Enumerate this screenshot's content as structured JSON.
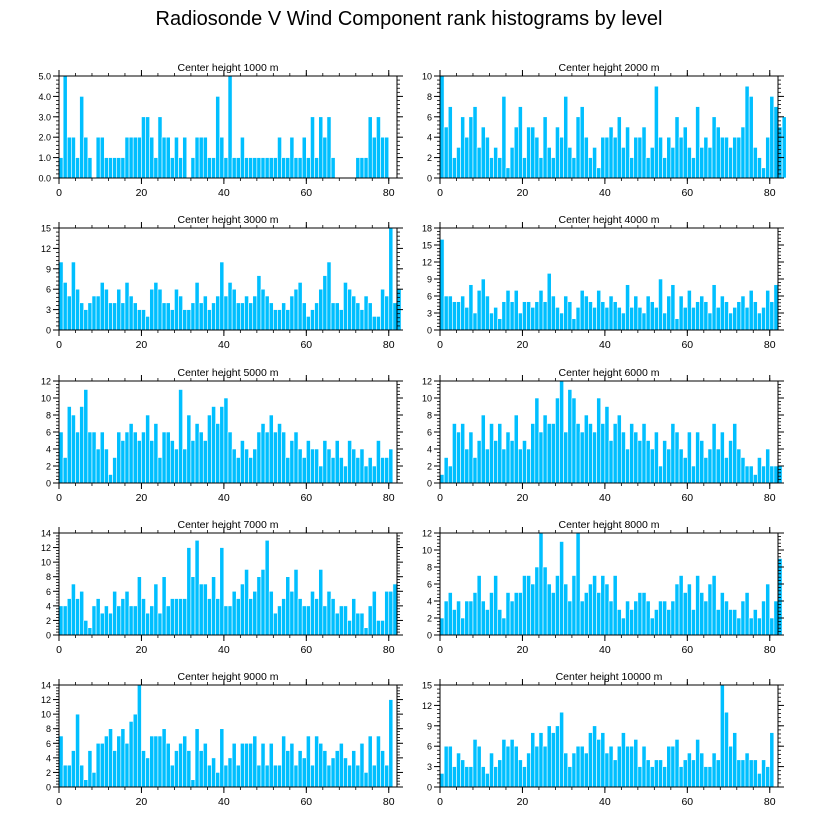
{
  "title": "Radiosonde V Wind Component rank histograms by level",
  "colors": {
    "bar": "#00bfff",
    "bar_edge": "#ffffff",
    "axis": "#000000"
  },
  "chart_data": [
    {
      "type": "bar",
      "title": "Center height 1000 m",
      "xlim": [
        0,
        82
      ],
      "ylim": [
        0,
        5
      ],
      "xticks": [
        0,
        20,
        40,
        60,
        80
      ],
      "yticks": [
        0,
        1,
        2,
        3,
        4,
        5
      ],
      "ytick_labels": [
        "0.0",
        "1.0",
        "2.0",
        "3.0",
        "4.0",
        "5.0"
      ],
      "values": [
        1,
        5,
        2,
        2,
        1,
        4,
        2,
        1,
        0,
        2,
        2,
        1,
        1,
        1,
        1,
        1,
        2,
        2,
        2,
        2,
        3,
        3,
        2,
        1,
        3,
        2,
        2,
        1,
        2,
        1,
        2,
        0,
        1,
        2,
        2,
        2,
        1,
        1,
        4,
        2,
        1,
        5,
        1,
        1,
        2,
        1,
        1,
        1,
        1,
        1,
        1,
        1,
        1,
        2,
        1,
        1,
        2,
        1,
        1,
        2,
        1,
        3,
        1,
        3,
        2,
        3,
        1,
        0,
        0,
        0,
        0,
        0,
        1,
        1,
        1,
        3,
        2,
        3,
        2,
        2,
        0
      ]
    },
    {
      "type": "bar",
      "title": "Center height 2000 m",
      "xlim": [
        0,
        82
      ],
      "ylim": [
        0,
        10
      ],
      "xticks": [
        0,
        20,
        40,
        60,
        80
      ],
      "yticks": [
        0,
        2,
        4,
        6,
        8,
        10
      ],
      "ytick_labels": [
        "0",
        "2",
        "4",
        "6",
        "8",
        "10"
      ],
      "values": [
        10,
        5,
        7,
        2,
        3,
        6,
        4,
        6,
        7,
        3,
        5,
        4,
        2,
        3,
        2,
        8,
        1,
        3,
        5,
        7,
        2,
        5,
        5,
        4,
        2,
        6,
        3,
        2,
        5,
        4,
        8,
        3,
        2,
        6,
        7,
        4,
        2,
        3,
        1,
        4,
        4,
        5,
        4,
        6,
        3,
        5,
        2,
        4,
        4,
        5,
        2,
        3,
        9,
        4,
        2,
        4,
        3,
        6,
        4,
        5,
        3,
        2,
        7,
        3,
        4,
        3,
        6,
        5,
        4,
        4,
        3,
        4,
        4,
        5,
        9,
        8,
        3,
        2,
        1,
        4,
        8,
        7,
        5,
        6
      ]
    },
    {
      "type": "bar",
      "title": "Center height 3000 m",
      "xlim": [
        0,
        82
      ],
      "ylim": [
        0,
        15
      ],
      "xticks": [
        0,
        20,
        40,
        60,
        80
      ],
      "yticks": [
        0,
        3,
        6,
        9,
        12,
        15
      ],
      "ytick_labels": [
        "0",
        "3",
        "6",
        "9",
        "12",
        "15"
      ],
      "values": [
        10,
        7,
        5,
        10,
        6,
        4,
        3,
        4,
        5,
        5,
        7,
        6,
        4,
        4,
        6,
        4,
        7,
        5,
        4,
        3,
        3,
        2,
        6,
        7,
        6,
        4,
        4,
        3,
        6,
        5,
        3,
        3,
        4,
        7,
        4,
        5,
        3,
        4,
        5,
        10,
        5,
        7,
        6,
        4,
        4,
        5,
        4,
        5,
        8,
        6,
        5,
        4,
        3,
        3,
        4,
        3,
        5,
        6,
        7,
        4,
        2,
        3,
        4,
        6,
        8,
        10,
        4,
        4,
        3,
        7,
        6,
        5,
        4,
        3,
        5,
        4,
        2,
        2,
        6,
        5,
        15,
        4,
        6
      ]
    },
    {
      "type": "bar",
      "title": "Center height 4000 m",
      "xlim": [
        0,
        82
      ],
      "ylim": [
        0,
        18
      ],
      "xticks": [
        0,
        20,
        40,
        60,
        80
      ],
      "yticks": [
        0,
        3,
        6,
        9,
        12,
        15,
        18
      ],
      "ytick_labels": [
        "0",
        "3",
        "6",
        "9",
        "12",
        "15",
        "18"
      ],
      "values": [
        16,
        6,
        6,
        5,
        5,
        6,
        4,
        8,
        3,
        7,
        9,
        6,
        3,
        4,
        2,
        5,
        7,
        5,
        7,
        3,
        5,
        5,
        4,
        5,
        7,
        5,
        10,
        6,
        4,
        3,
        6,
        5,
        2,
        4,
        7,
        6,
        5,
        4,
        7,
        5,
        4,
        6,
        5,
        4,
        3,
        8,
        4,
        6,
        4,
        3,
        6,
        5,
        4,
        9,
        3,
        6,
        8,
        2,
        6,
        4,
        7,
        4,
        5,
        6,
        5,
        3,
        8,
        4,
        6,
        5,
        3,
        4,
        5,
        6,
        4,
        7,
        5,
        3,
        4,
        7,
        5,
        8
      ]
    },
    {
      "type": "bar",
      "title": "Center height 5000 m",
      "xlim": [
        0,
        82
      ],
      "ylim": [
        0,
        12
      ],
      "xticks": [
        0,
        20,
        40,
        60,
        80
      ],
      "yticks": [
        0,
        2,
        4,
        6,
        8,
        10,
        12
      ],
      "ytick_labels": [
        "0",
        "2",
        "4",
        "6",
        "8",
        "10",
        "12"
      ],
      "values": [
        6,
        3,
        9,
        8,
        6,
        9,
        11,
        6,
        6,
        4,
        6,
        4,
        1,
        3,
        6,
        5,
        6,
        7,
        6,
        5,
        6,
        8,
        5,
        7,
        3,
        6,
        6,
        5,
        4,
        11,
        4,
        8,
        5,
        7,
        6,
        5,
        8,
        9,
        7,
        9,
        10,
        6,
        4,
        3,
        5,
        4,
        3,
        4,
        6,
        7,
        6,
        8,
        6,
        7,
        6,
        3,
        5,
        6,
        4,
        3,
        5,
        4,
        4,
        2,
        5,
        4,
        3,
        5,
        3,
        2,
        5,
        4,
        3,
        4,
        2,
        3,
        2,
        5,
        3,
        3,
        4
      ]
    },
    {
      "type": "bar",
      "title": "Center height 6000 m",
      "xlim": [
        0,
        82
      ],
      "ylim": [
        0,
        12
      ],
      "xticks": [
        0,
        20,
        40,
        60,
        80
      ],
      "yticks": [
        0,
        2,
        4,
        6,
        8,
        10,
        12
      ],
      "ytick_labels": [
        "0",
        "2",
        "4",
        "6",
        "8",
        "10",
        "12"
      ],
      "values": [
        1,
        3,
        2,
        7,
        6,
        7,
        4,
        6,
        3,
        5,
        8,
        4,
        7,
        5,
        7,
        4,
        6,
        5,
        8,
        4,
        5,
        4,
        7,
        10,
        6,
        8,
        7,
        7,
        10,
        12,
        6,
        11,
        10,
        7,
        6,
        8,
        7,
        6,
        10,
        7,
        9,
        5,
        7,
        8,
        6,
        4,
        7,
        6,
        5,
        7,
        5,
        4,
        6,
        2,
        5,
        4,
        7,
        6,
        4,
        3,
        6,
        2,
        6,
        5,
        3,
        4,
        7,
        4,
        6,
        3,
        5,
        7,
        4,
        3,
        2,
        2,
        1,
        3,
        2,
        4,
        2,
        2,
        2
      ]
    },
    {
      "type": "bar",
      "title": "Center height 7000 m",
      "xlim": [
        0,
        82
      ],
      "ylim": [
        0,
        14
      ],
      "xticks": [
        0,
        20,
        40,
        60,
        80
      ],
      "yticks": [
        0,
        2,
        4,
        6,
        8,
        10,
        12,
        14
      ],
      "ytick_labels": [
        "0",
        "2",
        "4",
        "6",
        "8",
        "10",
        "12",
        "14"
      ],
      "values": [
        4,
        4,
        5,
        7,
        5,
        6,
        2,
        1,
        4,
        5,
        3,
        4,
        3,
        6,
        4,
        5,
        6,
        4,
        4,
        8,
        5,
        3,
        4,
        7,
        3,
        8,
        4,
        5,
        5,
        5,
        5,
        12,
        8,
        13,
        7,
        7,
        5,
        8,
        5,
        12,
        4,
        4,
        6,
        5,
        7,
        9,
        5,
        6,
        8,
        9,
        13,
        6,
        3,
        4,
        5,
        8,
        6,
        9,
        5,
        4,
        4,
        6,
        5,
        9,
        4,
        6,
        5,
        3,
        4,
        4,
        2,
        5,
        3,
        3,
        1,
        4,
        6,
        2,
        2,
        6,
        6,
        7
      ]
    },
    {
      "type": "bar",
      "title": "Center height 8000 m",
      "xlim": [
        0,
        82
      ],
      "ylim": [
        0,
        12
      ],
      "xticks": [
        0,
        20,
        40,
        60,
        80
      ],
      "yticks": [
        0,
        2,
        4,
        6,
        8,
        10,
        12
      ],
      "ytick_labels": [
        "0",
        "2",
        "4",
        "6",
        "8",
        "10",
        "12"
      ],
      "values": [
        2,
        4,
        5,
        3,
        4,
        2,
        4,
        4,
        5,
        7,
        4,
        3,
        5,
        7,
        3,
        2,
        5,
        4,
        5,
        5,
        7,
        7,
        6,
        8,
        12,
        8,
        6,
        5,
        7,
        11,
        6,
        4,
        7,
        12,
        4,
        5,
        6,
        7,
        5,
        7,
        6,
        4,
        7,
        3,
        2,
        4,
        3,
        4,
        5,
        5,
        4,
        2,
        3,
        4,
        4,
        3,
        4,
        6,
        7,
        5,
        6,
        3,
        7,
        5,
        4,
        6,
        7,
        3,
        5,
        4,
        3,
        3,
        2,
        4,
        5,
        2,
        3,
        2,
        4,
        6,
        2,
        4,
        9
      ]
    },
    {
      "type": "bar",
      "title": "Center height 9000 m",
      "xlim": [
        0,
        82
      ],
      "ylim": [
        0,
        14
      ],
      "xticks": [
        0,
        20,
        40,
        60,
        80
      ],
      "yticks": [
        0,
        2,
        4,
        6,
        8,
        10,
        12,
        14
      ],
      "ytick_labels": [
        "0",
        "2",
        "4",
        "6",
        "8",
        "10",
        "12",
        "14"
      ],
      "values": [
        7,
        3,
        3,
        5,
        10,
        3,
        1,
        5,
        2,
        6,
        6,
        7,
        8,
        5,
        7,
        8,
        6,
        9,
        10,
        14,
        5,
        4,
        7,
        7,
        7,
        8,
        6,
        3,
        5,
        6,
        7,
        5,
        1,
        8,
        5,
        6,
        3,
        4,
        2,
        8,
        3,
        4,
        6,
        3,
        6,
        6,
        6,
        7,
        3,
        6,
        3,
        6,
        3,
        3,
        7,
        5,
        6,
        3,
        5,
        4,
        7,
        3,
        7,
        6,
        5,
        3,
        4,
        5,
        6,
        4,
        3,
        5,
        3,
        6,
        2,
        7,
        3,
        7,
        5,
        3,
        12
      ]
    },
    {
      "type": "bar",
      "title": "Center height 10000 m",
      "xlim": [
        0,
        82
      ],
      "ylim": [
        0,
        15
      ],
      "xticks": [
        0,
        20,
        40,
        60,
        80
      ],
      "yticks": [
        0,
        3,
        6,
        9,
        12,
        15
      ],
      "ytick_labels": [
        "0",
        "3",
        "6",
        "9",
        "12",
        "15"
      ],
      "values": [
        2,
        6,
        6,
        3,
        5,
        4,
        3,
        3,
        7,
        6,
        3,
        2,
        5,
        3,
        4,
        7,
        6,
        7,
        6,
        4,
        3,
        5,
        8,
        6,
        8,
        6,
        9,
        8,
        9,
        11,
        5,
        3,
        5,
        6,
        6,
        5,
        8,
        9,
        7,
        8,
        5,
        6,
        4,
        6,
        8,
        6,
        6,
        7,
        3,
        6,
        4,
        3,
        4,
        4,
        3,
        6,
        6,
        7,
        3,
        4,
        5,
        4,
        7,
        5,
        3,
        3,
        5,
        4,
        15,
        11,
        6,
        8,
        4,
        4,
        5,
        4,
        4,
        2,
        4,
        3,
        8
      ]
    }
  ]
}
